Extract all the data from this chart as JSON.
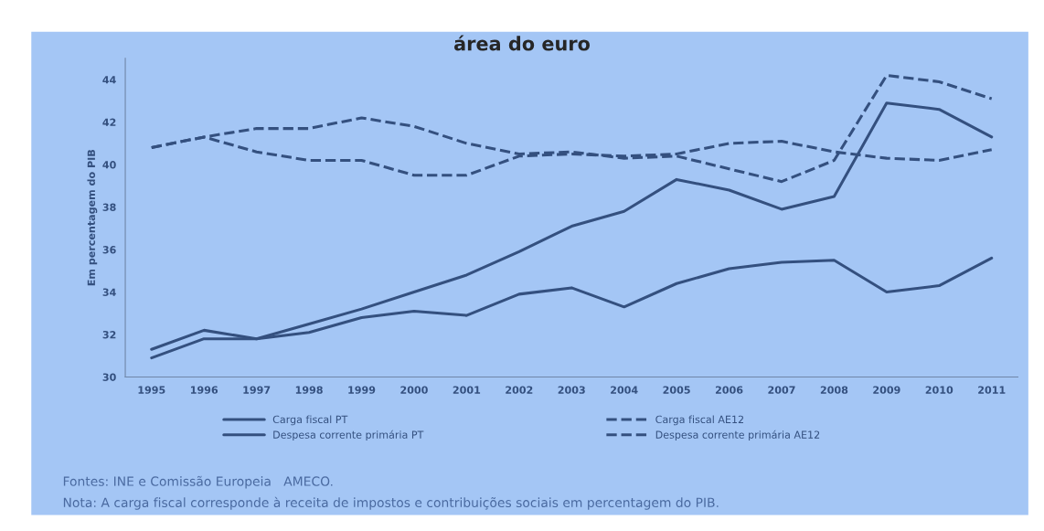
{
  "chart_data": {
    "type": "line",
    "title": "área do euro",
    "ylabel": "Em percentagem do PIB",
    "categories": [
      "1995",
      "1996",
      "1997",
      "1998",
      "1999",
      "2000",
      "2001",
      "2002",
      "2003",
      "2004",
      "2005",
      "2006",
      "2007",
      "2008",
      "2009",
      "2010",
      "2011"
    ],
    "series": [
      {
        "name": "Carga fiscal PT",
        "color": "#34507f",
        "line_style": "solid",
        "values": [
          31.3,
          32.2,
          31.8,
          32.1,
          32.8,
          33.1,
          32.9,
          33.9,
          34.2,
          33.3,
          34.4,
          35.1,
          35.4,
          35.5,
          34.0,
          34.3,
          35.6
        ]
      },
      {
        "name": "Despesa corrente primária PT",
        "color": "#34507f",
        "line_style": "solid",
        "values": [
          30.9,
          31.8,
          31.8,
          32.5,
          33.2,
          34.0,
          34.8,
          35.9,
          37.1,
          37.8,
          39.3,
          38.8,
          37.9,
          38.5,
          42.9,
          42.6,
          41.3
        ]
      },
      {
        "name": "Carga fiscal AE12",
        "color": "#34507f",
        "line_style": "dashed",
        "values": [
          40.8,
          41.3,
          40.6,
          40.2,
          40.2,
          39.5,
          39.5,
          40.4,
          40.5,
          40.4,
          40.5,
          41.0,
          41.1,
          40.6,
          40.3,
          40.2,
          40.7
        ]
      },
      {
        "name": "Despesa corrente primária AE12",
        "color": "#34507f",
        "line_style": "dashed",
        "values": [
          40.8,
          41.3,
          41.7,
          41.7,
          42.2,
          41.8,
          41.0,
          40.5,
          40.6,
          40.3,
          40.4,
          39.8,
          39.2,
          40.2,
          44.2,
          43.9,
          43.1
        ]
      }
    ],
    "ylim": [
      30,
      45
    ],
    "yticks": [
      30,
      32,
      34,
      36,
      38,
      40,
      42,
      44
    ],
    "grid": false,
    "legend": "bottom",
    "marker": "none",
    "annotations": [
      "Fontes: INE e Comissão Europeia   AMECO.",
      "Nota: A carga fiscal corresponde à receita de impostos e contribuições sociais em percentagem do PIB."
    ]
  }
}
